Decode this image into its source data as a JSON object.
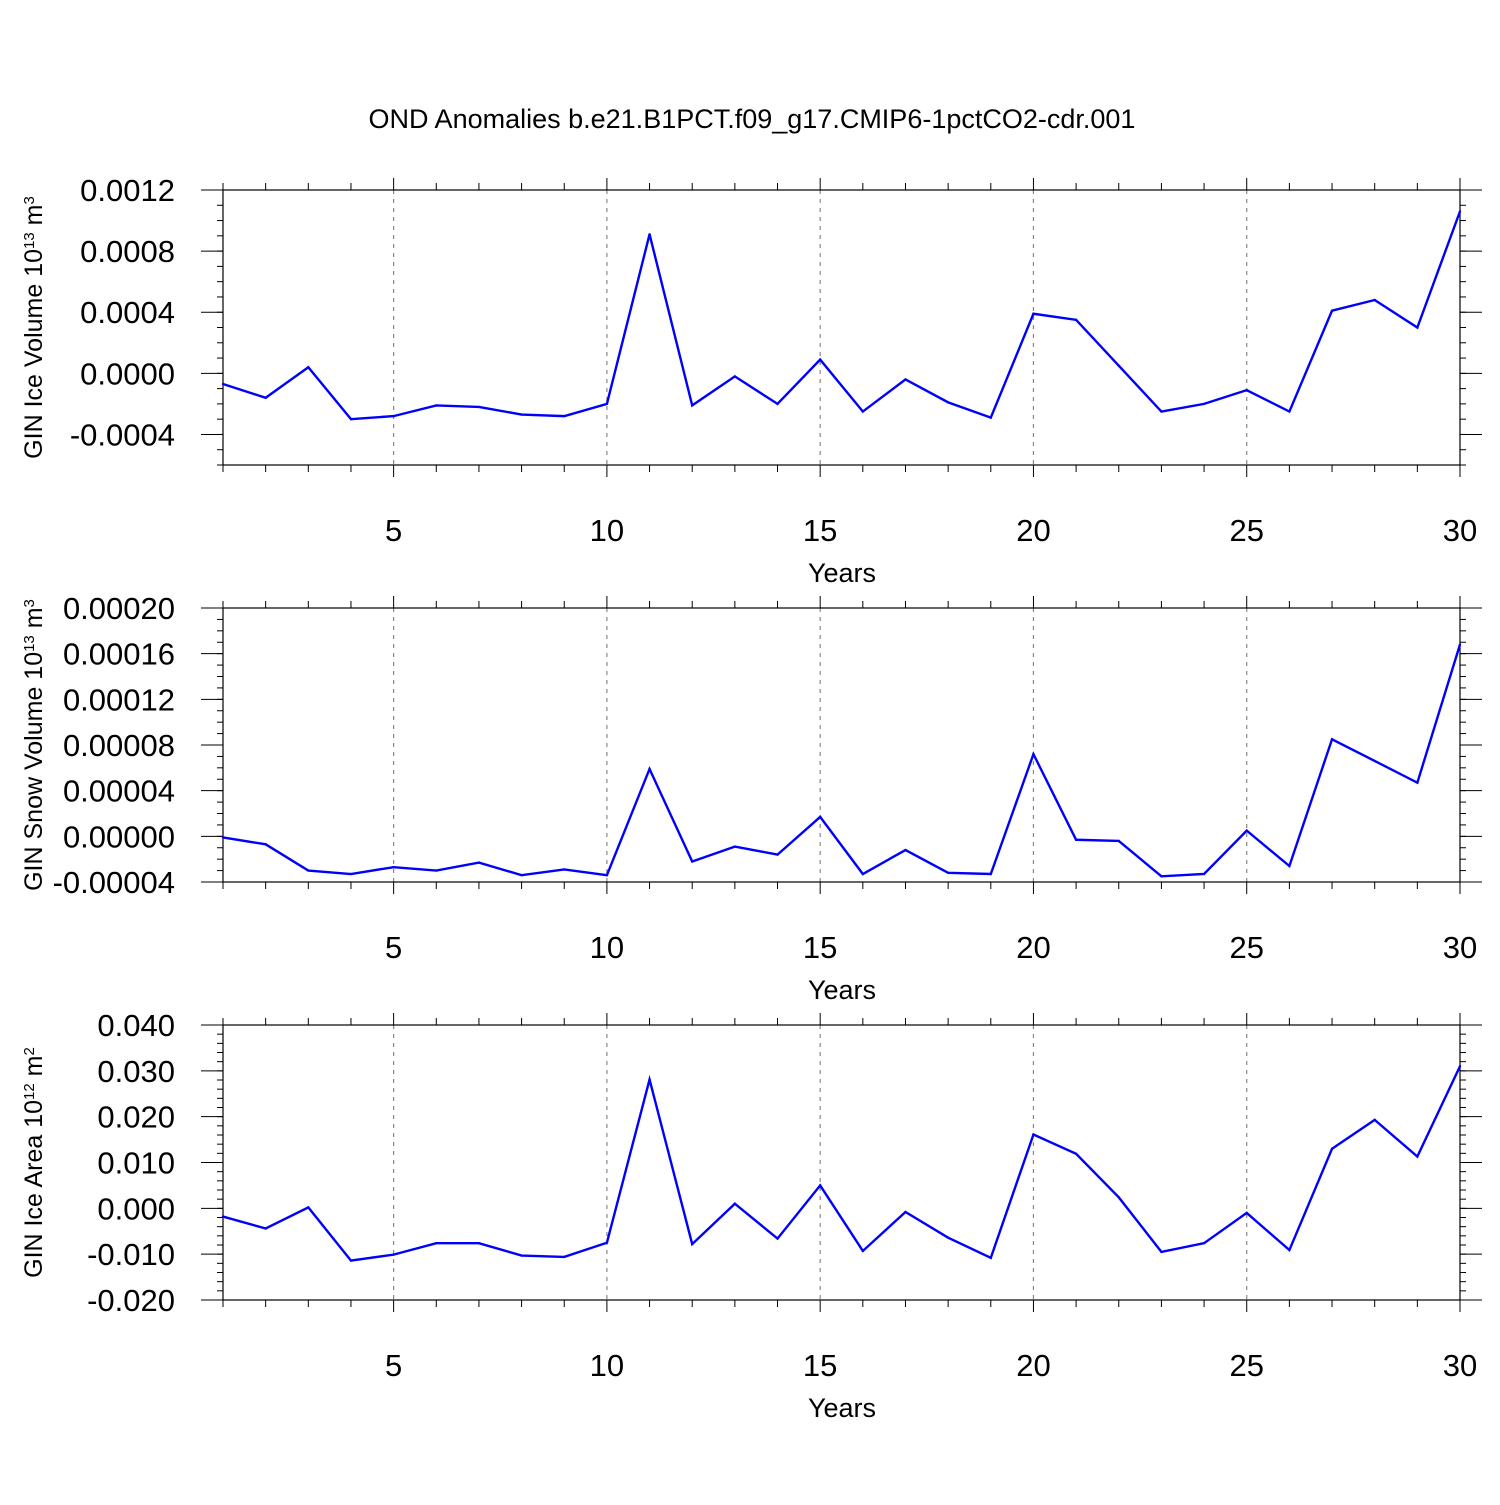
{
  "title": "OND Anomalies b.e21.B1PCT.f09_g17.CMIP6-1pctCO2-cdr.001",
  "colors": {
    "line": "#0000ff",
    "axis": "#000000",
    "grid": "#888888"
  },
  "chart_data": [
    {
      "type": "line",
      "name": "ice-volume",
      "ylabel": "GIN Ice Volume",
      "ylabel_unit": "10",
      "ylabel_exp": "13",
      "ylabel_tail": " m",
      "ylabel_tail_exp": "3",
      "xlabel": "Years",
      "xlim": [
        1,
        30
      ],
      "ylim": [
        -0.0006,
        0.0012
      ],
      "yticks": [
        -0.0004,
        0.0,
        0.0004,
        0.0008,
        0.0012
      ],
      "ytick_labels": [
        "-0.0004",
        "0.0000",
        "0.0004",
        "0.0008",
        "0.0012"
      ],
      "yminor_step": 0.0001,
      "xticks": [
        5,
        10,
        15,
        20,
        25,
        30
      ],
      "xtick_labels": [
        "5",
        "10",
        "15",
        "20",
        "25",
        "30"
      ],
      "grid_x": [
        5,
        10,
        15,
        20,
        25
      ],
      "x": [
        1,
        2,
        3,
        4,
        5,
        6,
        7,
        8,
        9,
        10,
        11,
        12,
        13,
        14,
        15,
        16,
        17,
        18,
        19,
        20,
        21,
        22,
        23,
        24,
        25,
        26,
        27,
        28,
        29,
        30
      ],
      "values": [
        -7e-05,
        -0.00016,
        4e-05,
        -0.0003,
        -0.00028,
        -0.00021,
        -0.00022,
        -0.00027,
        -0.00028,
        -0.0002,
        0.00091,
        -0.00021,
        -2e-05,
        -0.0002,
        9e-05,
        -0.00025,
        -4e-05,
        -0.00019,
        -0.00029,
        0.00039,
        0.00035,
        5e-05,
        -0.00025,
        -0.0002,
        -0.00011,
        -0.00025,
        0.00041,
        0.00048,
        0.0003,
        0.00106
      ]
    },
    {
      "type": "line",
      "name": "snow-volume",
      "ylabel": "GIN Snow Volume",
      "ylabel_unit": "10",
      "ylabel_exp": "13",
      "ylabel_tail": " m",
      "ylabel_tail_exp": "3",
      "xlabel": "Years",
      "xlim": [
        1,
        30
      ],
      "ylim": [
        -4e-05,
        0.0002
      ],
      "yticks": [
        -4e-05,
        0.0,
        4e-05,
        8e-05,
        0.00012,
        0.00016,
        0.0002
      ],
      "ytick_labels": [
        "-0.00004",
        "0.00000",
        "0.00004",
        "0.00008",
        "0.00012",
        "0.00016",
        "0.00020"
      ],
      "yminor_step": 1e-05,
      "xticks": [
        5,
        10,
        15,
        20,
        25,
        30
      ],
      "xtick_labels": [
        "5",
        "10",
        "15",
        "20",
        "25",
        "30"
      ],
      "grid_x": [
        5,
        10,
        15,
        20,
        25
      ],
      "x": [
        1,
        2,
        3,
        4,
        5,
        6,
        7,
        8,
        9,
        10,
        11,
        12,
        13,
        14,
        15,
        16,
        17,
        18,
        19,
        20,
        21,
        22,
        23,
        24,
        25,
        26,
        27,
        28,
        29,
        30
      ],
      "values": [
        -1e-06,
        -7e-06,
        -3e-05,
        -3.3e-05,
        -2.7e-05,
        -3e-05,
        -2.3e-05,
        -3.4e-05,
        -2.9e-05,
        -3.4e-05,
        5.9e-05,
        -2.2e-05,
        -9e-06,
        -1.6e-05,
        1.7e-05,
        -3.3e-05,
        -1.2e-05,
        -3.2e-05,
        -3.3e-05,
        7.2e-05,
        -3e-06,
        -4e-06,
        -3.5e-05,
        -3.3e-05,
        5e-06,
        -2.6e-05,
        8.5e-05,
        6.6e-05,
        4.7e-05,
        0.000168
      ]
    },
    {
      "type": "line",
      "name": "ice-area",
      "ylabel": "GIN Ice Area",
      "ylabel_unit": "10",
      "ylabel_exp": "12",
      "ylabel_tail": " m",
      "ylabel_tail_exp": "2",
      "xlabel": "Years",
      "xlim": [
        1,
        30
      ],
      "ylim": [
        -0.02,
        0.04
      ],
      "yticks": [
        -0.02,
        -0.01,
        0.0,
        0.01,
        0.02,
        0.03,
        0.04
      ],
      "ytick_labels": [
        "-0.020",
        "-0.010",
        "0.000",
        "0.010",
        "0.020",
        "0.030",
        "0.040"
      ],
      "yminor_step": 0.002,
      "xticks": [
        5,
        10,
        15,
        20,
        25,
        30
      ],
      "xtick_labels": [
        "5",
        "10",
        "15",
        "20",
        "25",
        "30"
      ],
      "grid_x": [
        5,
        10,
        15,
        20,
        25
      ],
      "x": [
        1,
        2,
        3,
        4,
        5,
        6,
        7,
        8,
        9,
        10,
        11,
        12,
        13,
        14,
        15,
        16,
        17,
        18,
        19,
        20,
        21,
        22,
        23,
        24,
        25,
        26,
        27,
        28,
        29,
        30
      ],
      "values": [
        -0.0018,
        -0.0044,
        0.0002,
        -0.0114,
        -0.0101,
        -0.0076,
        -0.0076,
        -0.0103,
        -0.0106,
        -0.0075,
        0.0281,
        -0.0078,
        0.001,
        -0.0066,
        0.005,
        -0.0093,
        -0.0008,
        -0.0064,
        -0.0108,
        0.0161,
        0.0119,
        0.0024,
        -0.0095,
        -0.0076,
        -0.001,
        -0.0091,
        0.013,
        0.0193,
        0.0113,
        0.031
      ]
    }
  ]
}
